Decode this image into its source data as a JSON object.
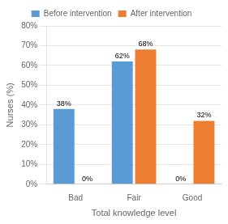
{
  "chart_data": {
    "type": "bar",
    "categories": [
      "Bad",
      "Fair",
      "Good"
    ],
    "series": [
      {
        "name": "Before intervention",
        "color": "#5B9BD5",
        "values": [
          38,
          62,
          0
        ],
        "value_labels": [
          "38%",
          "62%",
          "0%"
        ]
      },
      {
        "name": "After intervention",
        "color": "#ED7D31",
        "values": [
          0,
          68,
          32
        ],
        "value_labels": [
          "0%",
          "68%",
          "32%"
        ]
      }
    ],
    "xlabel": "Total knowledge level",
    "ylabel": "Nurses (%)",
    "ylim": [
      0,
      80
    ],
    "yticks": [
      {
        "value": 0,
        "label": "0%"
      },
      {
        "value": 10,
        "label": "10%"
      },
      {
        "value": 20,
        "label": "20%"
      },
      {
        "value": 30,
        "label": "30%"
      },
      {
        "value": 40,
        "label": "40%"
      },
      {
        "value": 50,
        "label": "50%"
      },
      {
        "value": 60,
        "label": "60%"
      },
      {
        "value": 70,
        "label": "70%"
      },
      {
        "value": 80,
        "label": "80%"
      }
    ],
    "grid": "y",
    "legend": "top",
    "data_labels": true
  }
}
